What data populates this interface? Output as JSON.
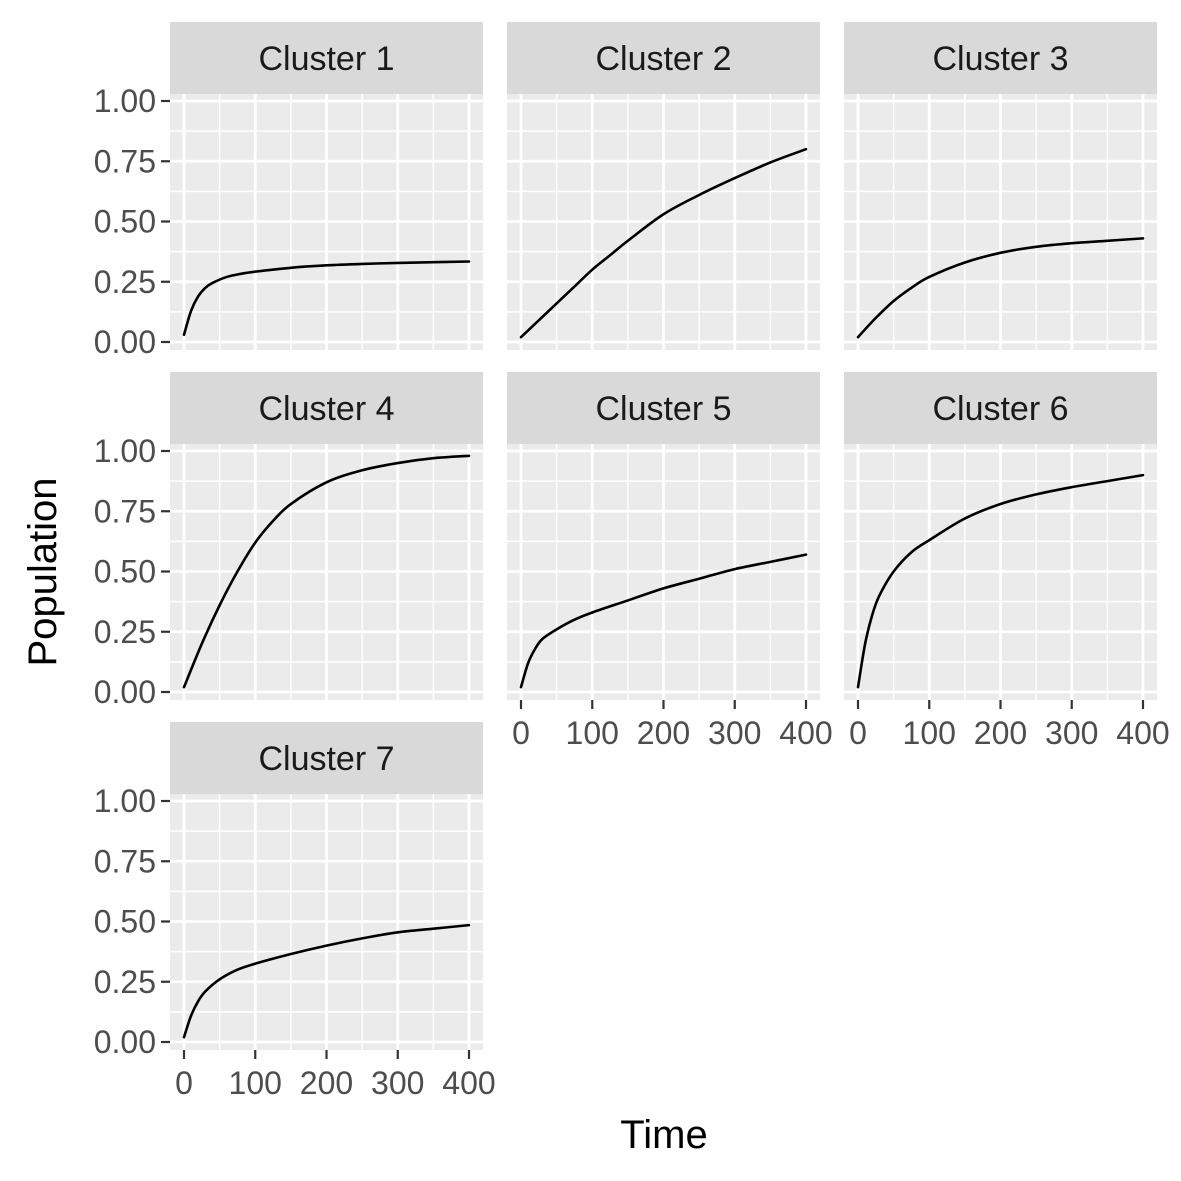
{
  "chart_data": {
    "type": "line",
    "layout": "facet_wrap",
    "xlabel": "Time",
    "ylabel": "Population",
    "xlim": [
      0,
      400
    ],
    "ylim": [
      0,
      1
    ],
    "x_ticks": [
      0,
      100,
      200,
      300,
      400
    ],
    "x_tick_labels": [
      "0",
      "100",
      "200",
      "300",
      "400"
    ],
    "y_ticks": [
      0,
      0.25,
      0.5,
      0.75,
      1.0
    ],
    "y_tick_labels": [
      "0.00",
      "0.25",
      "0.50",
      "0.75",
      "1.00"
    ],
    "line_color": "#000000",
    "panel_background": "#ebebeb",
    "strip_background": "#d9d9d9",
    "series": [
      {
        "name": "Cluster 1",
        "x": [
          0,
          10,
          20,
          30,
          40,
          60,
          80,
          100,
          150,
          200,
          250,
          300,
          350,
          400
        ],
        "y": [
          0.03,
          0.13,
          0.19,
          0.225,
          0.245,
          0.27,
          0.283,
          0.292,
          0.308,
          0.318,
          0.324,
          0.328,
          0.331,
          0.334
        ]
      },
      {
        "name": "Cluster 2",
        "x": [
          0,
          25,
          50,
          75,
          100,
          125,
          150,
          200,
          250,
          300,
          350,
          400
        ],
        "y": [
          0.02,
          0.09,
          0.16,
          0.23,
          0.3,
          0.36,
          0.42,
          0.53,
          0.61,
          0.68,
          0.745,
          0.8
        ]
      },
      {
        "name": "Cluster 3",
        "x": [
          0,
          25,
          50,
          75,
          100,
          150,
          200,
          250,
          300,
          350,
          400
        ],
        "y": [
          0.02,
          0.1,
          0.17,
          0.225,
          0.27,
          0.33,
          0.37,
          0.395,
          0.41,
          0.42,
          0.43
        ]
      },
      {
        "name": "Cluster 4",
        "x": [
          0,
          25,
          50,
          75,
          100,
          125,
          150,
          200,
          250,
          300,
          350,
          400
        ],
        "y": [
          0.02,
          0.2,
          0.36,
          0.5,
          0.62,
          0.71,
          0.78,
          0.87,
          0.92,
          0.95,
          0.97,
          0.98
        ]
      },
      {
        "name": "Cluster 5",
        "x": [
          0,
          10,
          20,
          30,
          50,
          75,
          100,
          150,
          200,
          250,
          300,
          350,
          400
        ],
        "y": [
          0.02,
          0.12,
          0.18,
          0.22,
          0.26,
          0.3,
          0.33,
          0.38,
          0.43,
          0.47,
          0.51,
          0.54,
          0.57
        ]
      },
      {
        "name": "Cluster 6",
        "x": [
          0,
          10,
          20,
          30,
          50,
          75,
          100,
          150,
          200,
          250,
          300,
          350,
          400
        ],
        "y": [
          0.02,
          0.2,
          0.32,
          0.4,
          0.5,
          0.58,
          0.63,
          0.72,
          0.78,
          0.82,
          0.85,
          0.875,
          0.9
        ]
      },
      {
        "name": "Cluster 7",
        "x": [
          0,
          10,
          20,
          30,
          50,
          75,
          100,
          150,
          200,
          250,
          300,
          350,
          400
        ],
        "y": [
          0.02,
          0.11,
          0.17,
          0.21,
          0.26,
          0.3,
          0.325,
          0.365,
          0.4,
          0.43,
          0.455,
          0.47,
          0.485
        ]
      }
    ]
  }
}
